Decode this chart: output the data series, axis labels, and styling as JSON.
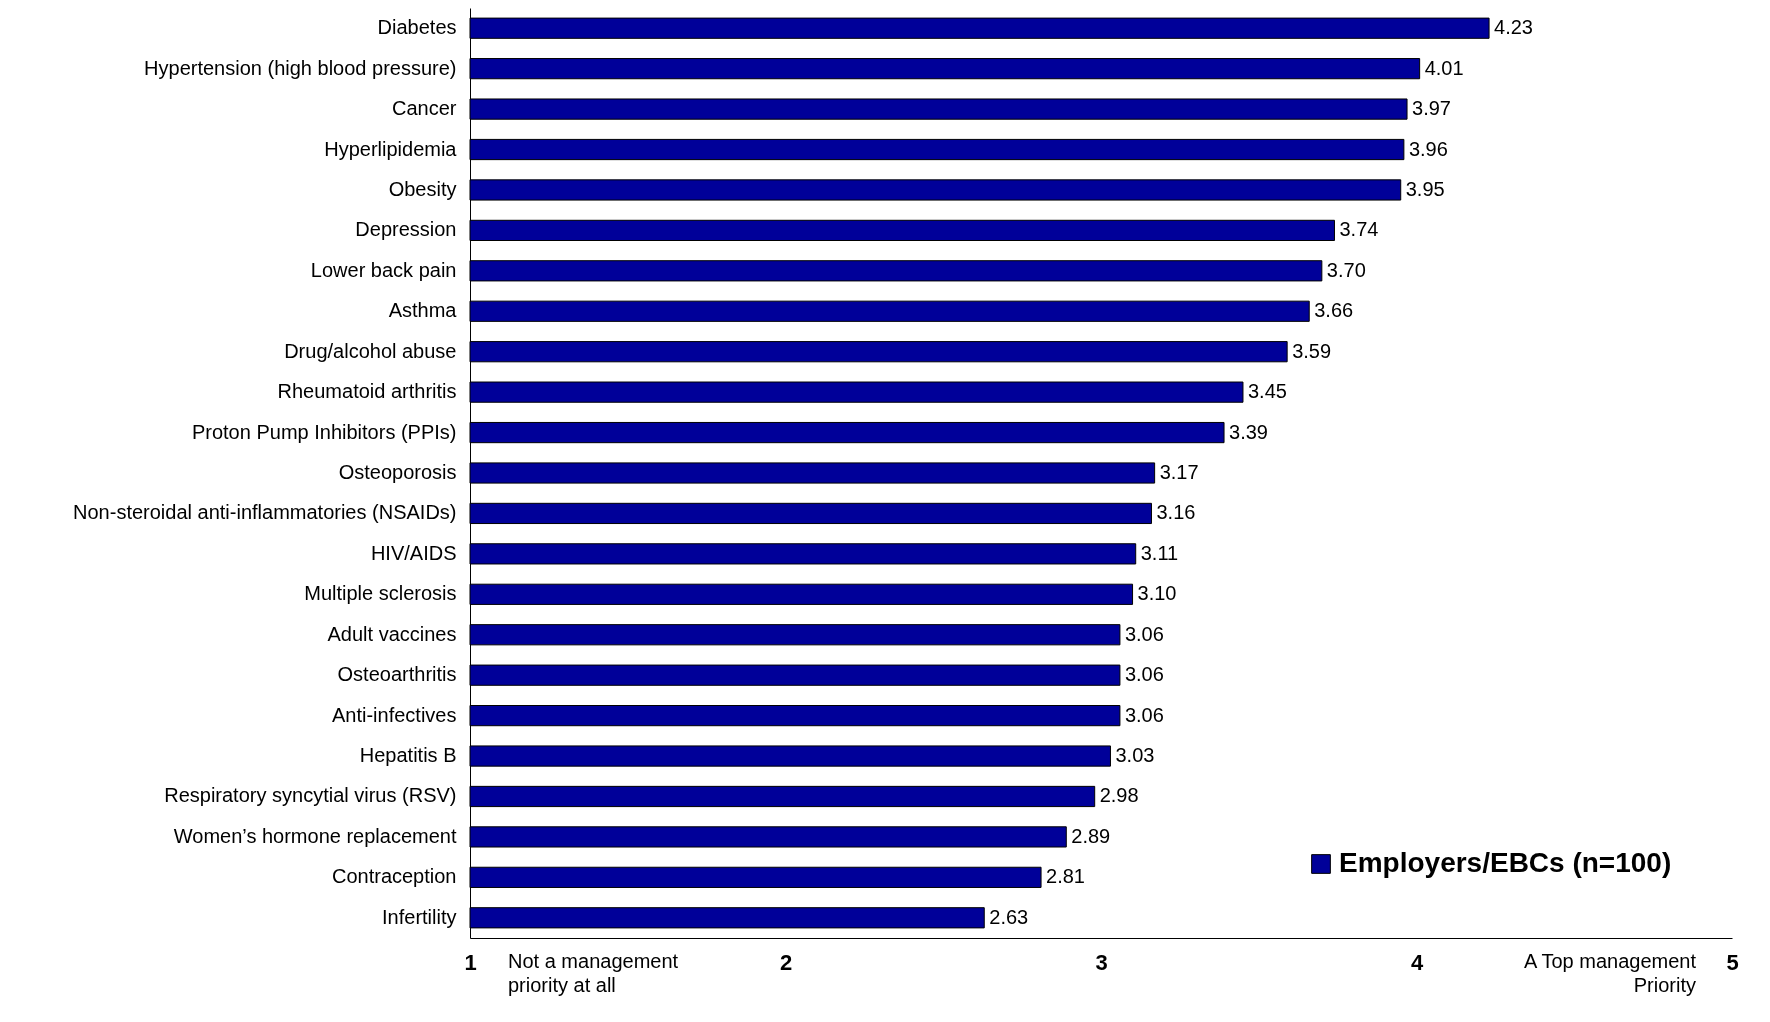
{
  "chart_data": {
    "type": "bar",
    "orientation": "horizontal",
    "categories": [
      "Diabetes",
      "Hypertension (high blood pressure)",
      "Cancer",
      "Hyperlipidemia",
      "Obesity",
      "Depression",
      "Lower back pain",
      "Asthma",
      "Drug/alcohol abuse",
      "Rheumatoid arthritis",
      "Proton Pump Inhibitors (PPIs)",
      "Osteoporosis",
      "Non-steroidal anti-inflammatories (NSAIDs)",
      "HIV/AIDS",
      "Multiple sclerosis",
      "Adult vaccines",
      "Osteoarthritis",
      "Anti-infectives",
      "Hepatitis B",
      "Respiratory syncytial virus (RSV)",
      "Women’s hormone replacement",
      "Contraception",
      "Infertility"
    ],
    "series": [
      {
        "name": "Employers/EBCs (n=100)",
        "color": "#000099",
        "values": [
          4.23,
          4.01,
          3.97,
          3.96,
          3.95,
          3.74,
          3.7,
          3.66,
          3.59,
          3.45,
          3.39,
          3.17,
          3.16,
          3.11,
          3.1,
          3.06,
          3.06,
          3.06,
          3.03,
          2.98,
          2.89,
          2.81,
          2.63
        ]
      }
    ],
    "value_labels": [
      "4.23",
      "4.01",
      "3.97",
      "3.96",
      "3.95",
      "3.74",
      "3.70",
      "3.66",
      "3.59",
      "3.45",
      "3.39",
      "3.17",
      "3.16",
      "3.11",
      "3.10",
      "3.06",
      "3.06",
      "3.06",
      "3.03",
      "2.98",
      "2.89",
      "2.81",
      "2.63"
    ],
    "xlim": [
      1,
      5
    ],
    "xticks": [
      1,
      2,
      3,
      4,
      5
    ],
    "legend": "bottom right",
    "annotations": [
      "Not a management priority at all",
      "A Top management Priority"
    ]
  }
}
